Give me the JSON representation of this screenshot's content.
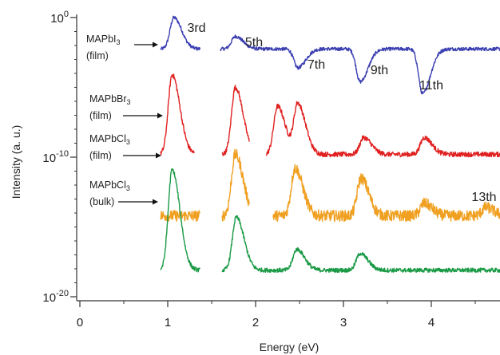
{
  "chart_data": {
    "type": "line",
    "xlabel": "Energy (eV)",
    "ylabel": "Intensity (a. u.)",
    "xlim": [
      -0.2,
      4.8
    ],
    "x_ticks": [
      "0",
      "1",
      "2",
      "3",
      "4"
    ],
    "y_ticks": [
      {
        "base": "10",
        "exp": "0"
      },
      {
        "base": "10",
        "exp": "-10"
      },
      {
        "base": "10",
        "exp": "-20"
      }
    ],
    "y_scale": "log (offset traces)",
    "grid": false,
    "harmonic_labels": [
      {
        "text": "3rd",
        "x": 1.07
      },
      {
        "text": "5th",
        "x": 1.77
      },
      {
        "text": "7th",
        "x": 2.48
      },
      {
        "text": "9th",
        "x": 3.19
      },
      {
        "text": "11th",
        "x": 3.9
      },
      {
        "text": "13th",
        "x": 4.6
      }
    ],
    "series": [
      {
        "name": "MAPbI3 (film)",
        "line1": "MAPbI",
        "sub": "3",
        "line2": "(film)",
        "color": "#3b3fb0",
        "baseline": -2.25,
        "peaks": [
          {
            "x": 1.07,
            "y": 0.0
          },
          {
            "x": 1.77,
            "y": -1.35
          },
          {
            "x": 2.48,
            "y": -3.6
          },
          {
            "x": 3.19,
            "y": -4.6
          },
          {
            "x": 3.9,
            "y": -5.45
          }
        ]
      },
      {
        "name": "MAPbBr3 (film)",
        "line1": "MAPbBr",
        "sub": "3",
        "line2": "(film)",
        "color": "#e02020",
        "baseline": -9.8,
        "peaks": [
          {
            "x": 1.05,
            "y": -4.1
          },
          {
            "x": 1.77,
            "y": -5.0
          },
          {
            "x": 2.25,
            "y": -6.35
          },
          {
            "x": 2.48,
            "y": -6.2
          },
          {
            "x": 3.23,
            "y": -8.6
          },
          {
            "x": 3.92,
            "y": -8.6
          }
        ]
      },
      {
        "name": "MAPbCl3 (film)",
        "line1": "MAPbCl",
        "sub": "3",
        "line2": "(film)",
        "color": "#f0a020",
        "baseline": -14.2,
        "peaks": [
          {
            "x": 1.77,
            "y": -9.8
          },
          {
            "x": 2.45,
            "y": -10.8
          },
          {
            "x": 3.2,
            "y": -11.5
          },
          {
            "x": 3.92,
            "y": -13.3
          },
          {
            "x": 4.62,
            "y": -13.6
          }
        ]
      },
      {
        "name": "MAPbCl3 (bulk)",
        "line1": "MAPbCl",
        "sub": "3",
        "line2": "(bulk)",
        "color": "#1a9a45",
        "baseline": -18.1,
        "peaks": [
          {
            "x": 1.05,
            "y": -10.9
          },
          {
            "x": 1.78,
            "y": -14.3
          },
          {
            "x": 2.47,
            "y": -16.6
          },
          {
            "x": 3.19,
            "y": -16.9
          }
        ]
      }
    ]
  }
}
